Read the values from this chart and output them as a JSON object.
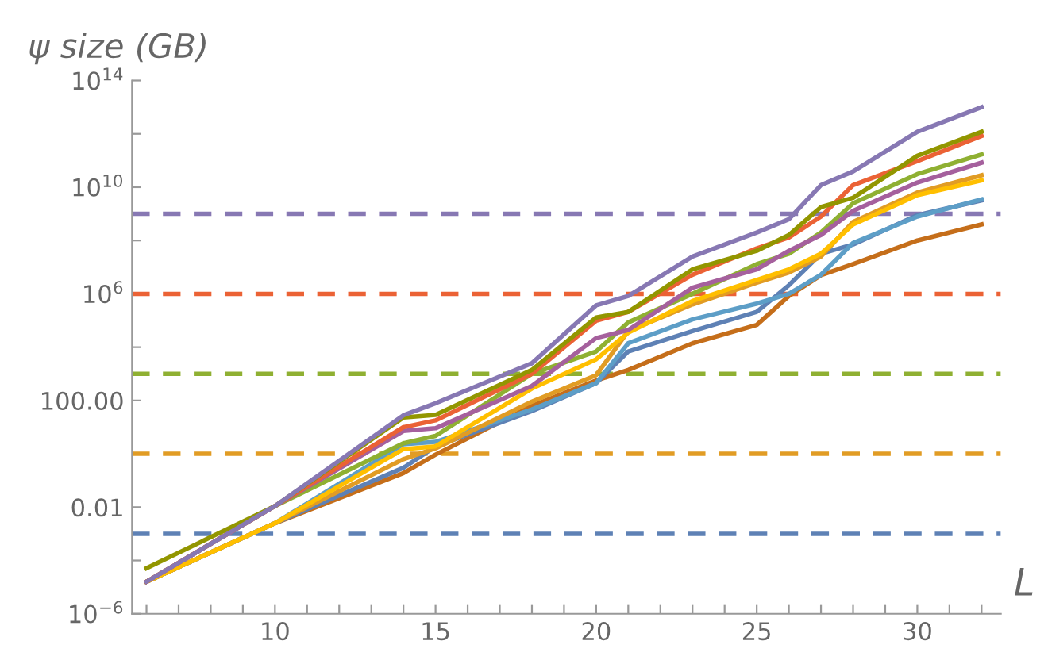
{
  "chart_data": {
    "type": "line",
    "xlabel": "L",
    "ylabel": "ψ size (GB)",
    "log": "y",
    "grid": false,
    "legend": false,
    "marker": "none",
    "line_style": "solid",
    "x": [
      6,
      10,
      14,
      15,
      18,
      20,
      21,
      23,
      25,
      26,
      27,
      28,
      30,
      32
    ],
    "xlim": [
      5.55,
      32.6
    ],
    "ylim": [
      1e-06,
      100000000000000.0
    ],
    "xticks": [
      {
        "value": 6,
        "label": null
      },
      {
        "value": 7,
        "label": null
      },
      {
        "value": 8,
        "label": null
      },
      {
        "value": 9,
        "label": null
      },
      10,
      {
        "value": 11,
        "label": null
      },
      {
        "value": 12,
        "label": null
      },
      {
        "value": 13,
        "label": null
      },
      {
        "value": 14,
        "label": null
      },
      15,
      {
        "value": 16,
        "label": null
      },
      {
        "value": 17,
        "label": null
      },
      {
        "value": 18,
        "label": null
      },
      {
        "value": 19,
        "label": null
      },
      20,
      {
        "value": 21,
        "label": null
      },
      {
        "value": 22,
        "label": null
      },
      {
        "value": 23,
        "label": null
      },
      {
        "value": 24,
        "label": null
      },
      25,
      {
        "value": 26,
        "label": null
      },
      {
        "value": 27,
        "label": null
      },
      {
        "value": 28,
        "label": null
      },
      {
        "value": 29,
        "label": null
      },
      30,
      {
        "value": 31,
        "label": null
      },
      {
        "value": 32,
        "label": null
      }
    ],
    "yticks": [
      {
        "value": 1e-06,
        "label": "10$^{−6}$"
      },
      {
        "value": 0.0001,
        "label": null
      },
      {
        "value": 0.01,
        "label": "0.01"
      },
      {
        "value": 1,
        "label": null
      },
      {
        "value": 100,
        "label": "100.00"
      },
      {
        "value": 10000,
        "label": null
      },
      {
        "value": 1000000.0,
        "label": "10$^{6}$"
      },
      {
        "value": 100000000.0,
        "label": null
      },
      {
        "value": 10000000000.0,
        "label": "10$^{10}$"
      },
      {
        "value": 1000000000000.0,
        "label": null
      },
      {
        "value": 100000000000000.0,
        "label": "10$^{14}$"
      }
    ],
    "ref_lines": [
      {
        "axis": "y",
        "value": 0.001,
        "color": "#5e81b5",
        "line_style": "dashed"
      },
      {
        "axis": "y",
        "value": 1,
        "color": "#e19c24",
        "line_style": "dashed"
      },
      {
        "axis": "y",
        "value": 1000,
        "color": "#8fb032",
        "line_style": "dashed"
      },
      {
        "axis": "y",
        "value": 1000000.0,
        "color": "#eb6235",
        "line_style": "dashed"
      },
      {
        "axis": "y",
        "value": 1000000000.0,
        "color": "#8778b3",
        "line_style": "dashed"
      }
    ],
    "series": [
      {
        "color": "#c56e1a",
        "values": [
          1.6e-05,
          0.0025,
          0.19,
          0.93,
          63,
          560,
          1400,
          14000,
          68000,
          830000,
          5000000.0,
          13000000.0,
          100000000.0,
          400000000.0
        ]
      },
      {
        "color": "#5e81b5",
        "values": [
          1.6e-05,
          0.0025,
          0.3,
          1.9,
          40,
          450,
          6900,
          40000,
          210000,
          2100000.0,
          32000000.0,
          71000000.0,
          890000000.0,
          3200000000.0
        ]
      },
      {
        "color": "#5d9ec7",
        "values": [
          1.6e-05,
          0.0025,
          2.3,
          2.8,
          46,
          450,
          14000,
          110000,
          430000,
          1000000.0,
          5200000.0,
          81000000.0,
          790000000.0,
          3500000000.0
        ]
      },
      {
        "color": "#e19c24",
        "values": [
          1.6e-05,
          0.0025,
          0.63,
          1.6,
          91,
          890,
          40000,
          400000,
          2600000.0,
          6300000.0,
          25000000.0,
          500000000.0,
          6300000000.0,
          28000000000.0
        ]
      },
      {
        "color": "#ffbf00",
        "values": [
          1.6e-05,
          0.0025,
          1.5,
          1.9,
          280,
          3500,
          35000,
          540000,
          3300000.0,
          8300000.0,
          32000000.0,
          400000000.0,
          5000000000.0,
          18000000000.0
        ]
      },
      {
        "color": "#8fb032",
        "values": [
          1.6e-05,
          0.011,
          2.5,
          4.7,
          1000,
          6900,
          85000,
          1000000.0,
          13000000.0,
          32000000.0,
          200000000.0,
          2500000000.0,
          31000000000.0,
          170000000000.0
        ]
      },
      {
        "color": "#a5609d",
        "values": [
          1.6e-05,
          0.011,
          7.2,
          9.1,
          350,
          22000,
          44000,
          1700000.0,
          8300000.0,
          41000000.0,
          160000000.0,
          1300000000.0,
          15000000000.0,
          83000000000.0
        ]
      },
      {
        "color": "#eb6235",
        "values": [
          1.6e-05,
          0.011,
          10,
          18,
          1000,
          98000,
          210000,
          5200000.0,
          51000000.0,
          130000000.0,
          790000000.0,
          12000000000.0,
          95000000000.0,
          830000000000.0
        ]
      },
      {
        "color": "#929600",
        "values": [
          5.1e-05,
          0.011,
          23,
          29,
          1400,
          130000,
          210000,
          8300000.0,
          41000000.0,
          160000000.0,
          1800000000.0,
          4000000000.0,
          150000000000.0,
          1200000000000.0
        ]
      },
      {
        "color": "#8778b3",
        "values": [
          1.6e-05,
          0.011,
          28,
          79,
          2500,
          370000,
          830000,
          25000000.0,
          200000000.0,
          630000000.0,
          12000000000.0,
          39000000000.0,
          1200000000000.0,
          10000000000000.0
        ]
      }
    ]
  }
}
